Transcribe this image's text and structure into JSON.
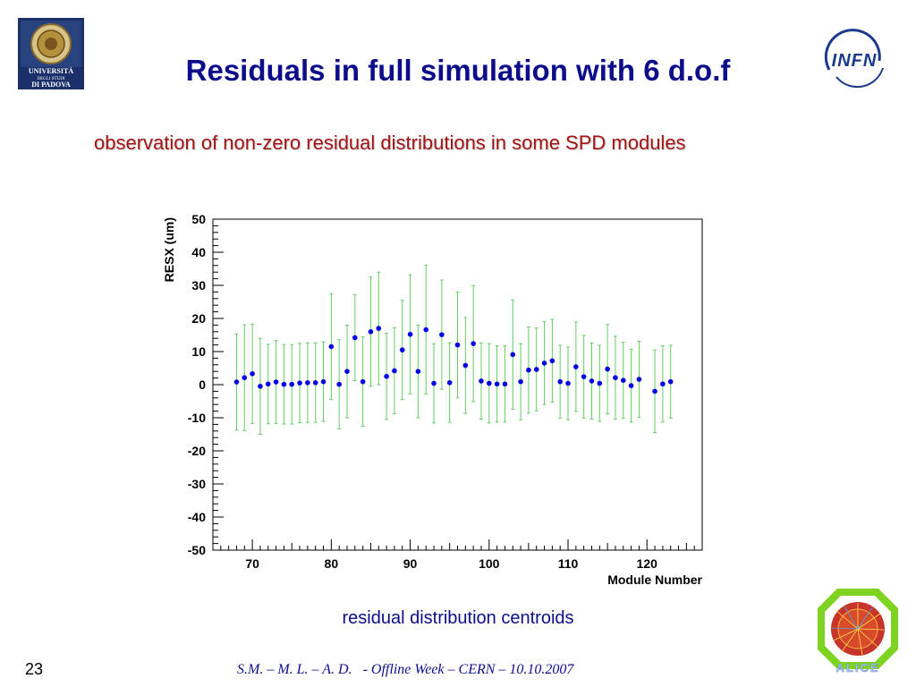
{
  "slide": {
    "title": "Residuals in full simulation  with 6 d.o.f",
    "subtitle": "observation of non-zero residual distributions in some SPD modules",
    "caption": "residual distribution centroids",
    "page_number": "23",
    "footer": "S.M. – M. L. – A. D.   - Offline Week – CERN – 10.10.2007"
  },
  "logos": {
    "padova": {
      "line1": "UNIVERSITÀ",
      "line2": "DEGLI STUDI",
      "line3": "DI PADOVA"
    },
    "infn": {
      "text": "INFN"
    },
    "alice": {
      "text": "ALICE"
    }
  },
  "colors": {
    "title": "#0d0d8c",
    "subtitle": "#a31414",
    "marker": "#0000e6",
    "error_bar": "#66cc66"
  },
  "chart_data": {
    "type": "scatter",
    "title": "",
    "xlabel": "Module Number",
    "ylabel": "RESX (um)",
    "xlim": [
      65,
      127
    ],
    "ylim": [
      -50,
      50
    ],
    "x_ticks": [
      70,
      80,
      90,
      100,
      110,
      120
    ],
    "y_ticks": [
      -50,
      -40,
      -30,
      -20,
      -10,
      0,
      10,
      20,
      30,
      40,
      50
    ],
    "grid": false,
    "x": [
      68,
      69,
      70,
      71,
      72,
      73,
      74,
      75,
      76,
      77,
      78,
      79,
      80,
      81,
      82,
      83,
      84,
      85,
      86,
      87,
      88,
      89,
      90,
      91,
      92,
      93,
      94,
      95,
      96,
      97,
      98,
      99,
      100,
      101,
      102,
      103,
      104,
      105,
      106,
      107,
      108,
      109,
      110,
      111,
      112,
      113,
      114,
      115,
      116,
      117,
      118,
      119,
      121,
      122,
      123
    ],
    "y": [
      0.8,
      2.1,
      3.3,
      -0.5,
      0.2,
      0.8,
      0.1,
      0.1,
      0.5,
      0.6,
      0.6,
      0.9,
      11.5,
      0.1,
      4.0,
      14.2,
      0.9,
      16.0,
      17.0,
      2.5,
      4.2,
      10.5,
      15.2,
      4.0,
      16.6,
      0.4,
      15.1,
      0.6,
      12.0,
      5.8,
      12.4,
      1.1,
      0.4,
      0.2,
      0.2,
      9.1,
      0.9,
      4.4,
      4.6,
      6.5,
      7.2,
      0.9,
      0.4,
      5.4,
      2.4,
      1.1,
      0.4,
      4.7,
      2.1,
      1.3,
      -0.3,
      1.6,
      -2.0,
      0.2,
      0.9
    ],
    "y_err": [
      14.5,
      16.0,
      15.0,
      14.5,
      12.0,
      12.5,
      12.0,
      12.0,
      12.0,
      12.0,
      12.0,
      12.0,
      16.0,
      13.5,
      14.0,
      13.0,
      13.5,
      16.5,
      17.0,
      13.0,
      13.0,
      15.0,
      18.0,
      14.0,
      19.5,
      12.0,
      16.5,
      12.0,
      16.0,
      14.5,
      17.5,
      11.5,
      12.0,
      11.5,
      11.5,
      16.5,
      11.5,
      13.0,
      12.5,
      12.5,
      12.5,
      11.0,
      11.0,
      13.5,
      12.5,
      11.5,
      11.5,
      13.5,
      12.5,
      11.5,
      11.0,
      11.5,
      12.5,
      11.5,
      11.0
    ]
  }
}
